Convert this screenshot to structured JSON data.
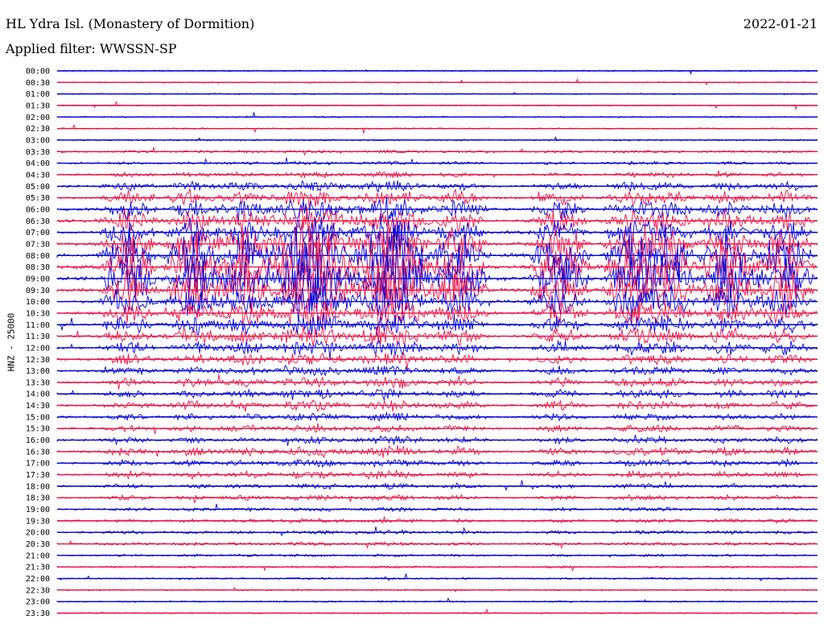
{
  "header": {
    "title": "HL Ydra Isl. (Monastery of Dormition)",
    "date": "2022-01-21",
    "filter": "Applied filter: WWSSN-SP"
  },
  "chart_data": {
    "type": "line",
    "title": "HL Ydra Isl. (Monastery of Dormition)",
    "subtitle": "Applied filter: WWSSN-SP",
    "ylabel": "HNZ - 25000",
    "xlabel": "",
    "grid": false,
    "colors": [
      "#0000dd",
      "#ee1144"
    ],
    "categories": [
      "00:00",
      "00:30",
      "01:00",
      "01:30",
      "02:00",
      "02:30",
      "03:00",
      "03:30",
      "04:00",
      "04:30",
      "05:00",
      "05:30",
      "06:00",
      "06:30",
      "07:00",
      "07:30",
      "08:00",
      "08:30",
      "09:00",
      "09:30",
      "10:00",
      "10:30",
      "11:00",
      "11:30",
      "12:00",
      "12:30",
      "13:00",
      "13:30",
      "14:00",
      "14:30",
      "15:00",
      "15:30",
      "16:00",
      "16:30",
      "17:00",
      "17:30",
      "18:00",
      "18:30",
      "19:00",
      "19:30",
      "20:00",
      "20:30",
      "21:00",
      "21:30",
      "22:00",
      "22:30",
      "23:00",
      "23:30"
    ],
    "activity": [
      0.02,
      0.03,
      0.05,
      0.05,
      0.05,
      0.06,
      0.08,
      0.15,
      0.18,
      0.25,
      0.35,
      0.45,
      0.55,
      0.6,
      0.65,
      0.75,
      0.9,
      1.0,
      0.95,
      0.85,
      0.7,
      0.6,
      0.55,
      0.5,
      0.45,
      0.4,
      0.35,
      0.35,
      0.35,
      0.35,
      0.3,
      0.3,
      0.3,
      0.35,
      0.3,
      0.3,
      0.25,
      0.25,
      0.2,
      0.2,
      0.2,
      0.18,
      0.15,
      0.12,
      0.1,
      0.08,
      0.08,
      0.06
    ]
  }
}
